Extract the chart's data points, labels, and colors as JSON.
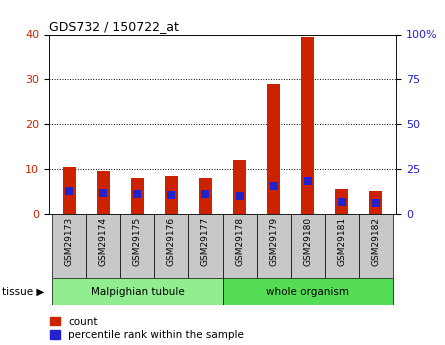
{
  "title": "GDS732 / 150722_at",
  "samples": [
    "GSM29173",
    "GSM29174",
    "GSM29175",
    "GSM29176",
    "GSM29177",
    "GSM29178",
    "GSM29179",
    "GSM29180",
    "GSM29181",
    "GSM29182"
  ],
  "counts": [
    10.5,
    9.5,
    8.0,
    8.5,
    8.0,
    12.0,
    29.0,
    39.5,
    5.5,
    5.0
  ],
  "percentiles_left_scale": [
    5.2,
    4.6,
    4.4,
    4.2,
    4.4,
    4.0,
    6.2,
    7.4,
    2.6,
    2.4
  ],
  "groups": [
    {
      "label": "Malpighian tubule",
      "start": 0,
      "end": 5,
      "color": "#90EE90"
    },
    {
      "label": "whole organism",
      "start": 5,
      "end": 10,
      "color": "#55DD55"
    }
  ],
  "bar_color_count": "#CC2200",
  "bar_color_percentile": "#2222CC",
  "left_ylim": [
    0,
    40
  ],
  "right_ylim": [
    0,
    100
  ],
  "left_yticks": [
    0,
    10,
    20,
    30,
    40
  ],
  "right_yticks": [
    0,
    25,
    50,
    75,
    100
  ],
  "right_yticklabels": [
    "0",
    "25",
    "50",
    "75",
    "100%"
  ],
  "plot_bg_color": "#FFFFFF",
  "grid_color": "#000000",
  "legend_count_label": "count",
  "legend_percentile_label": "percentile rank within the sample",
  "tissue_label": "tissue",
  "bar_width": 0.4,
  "pct_marker_size": 5.5,
  "tick_box_color": "#C8C8C8",
  "n_samples": 10
}
